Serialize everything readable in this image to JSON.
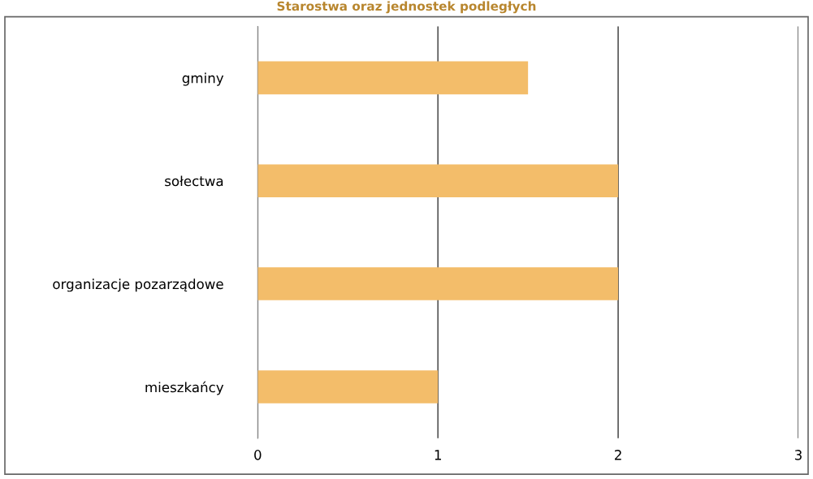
{
  "chart_data": {
    "type": "bar",
    "orientation": "horizontal",
    "title": "Starostwa oraz jednostek podległych",
    "categories": [
      "gminy",
      "sołectwa",
      "organizacje pozarządowe",
      "mieszkańcy"
    ],
    "values": [
      1.5,
      2,
      2,
      1
    ],
    "color": "#f3bd6a",
    "xlim": [
      0,
      3
    ],
    "xticks": [
      0,
      1,
      2,
      3
    ],
    "grid": "x"
  }
}
